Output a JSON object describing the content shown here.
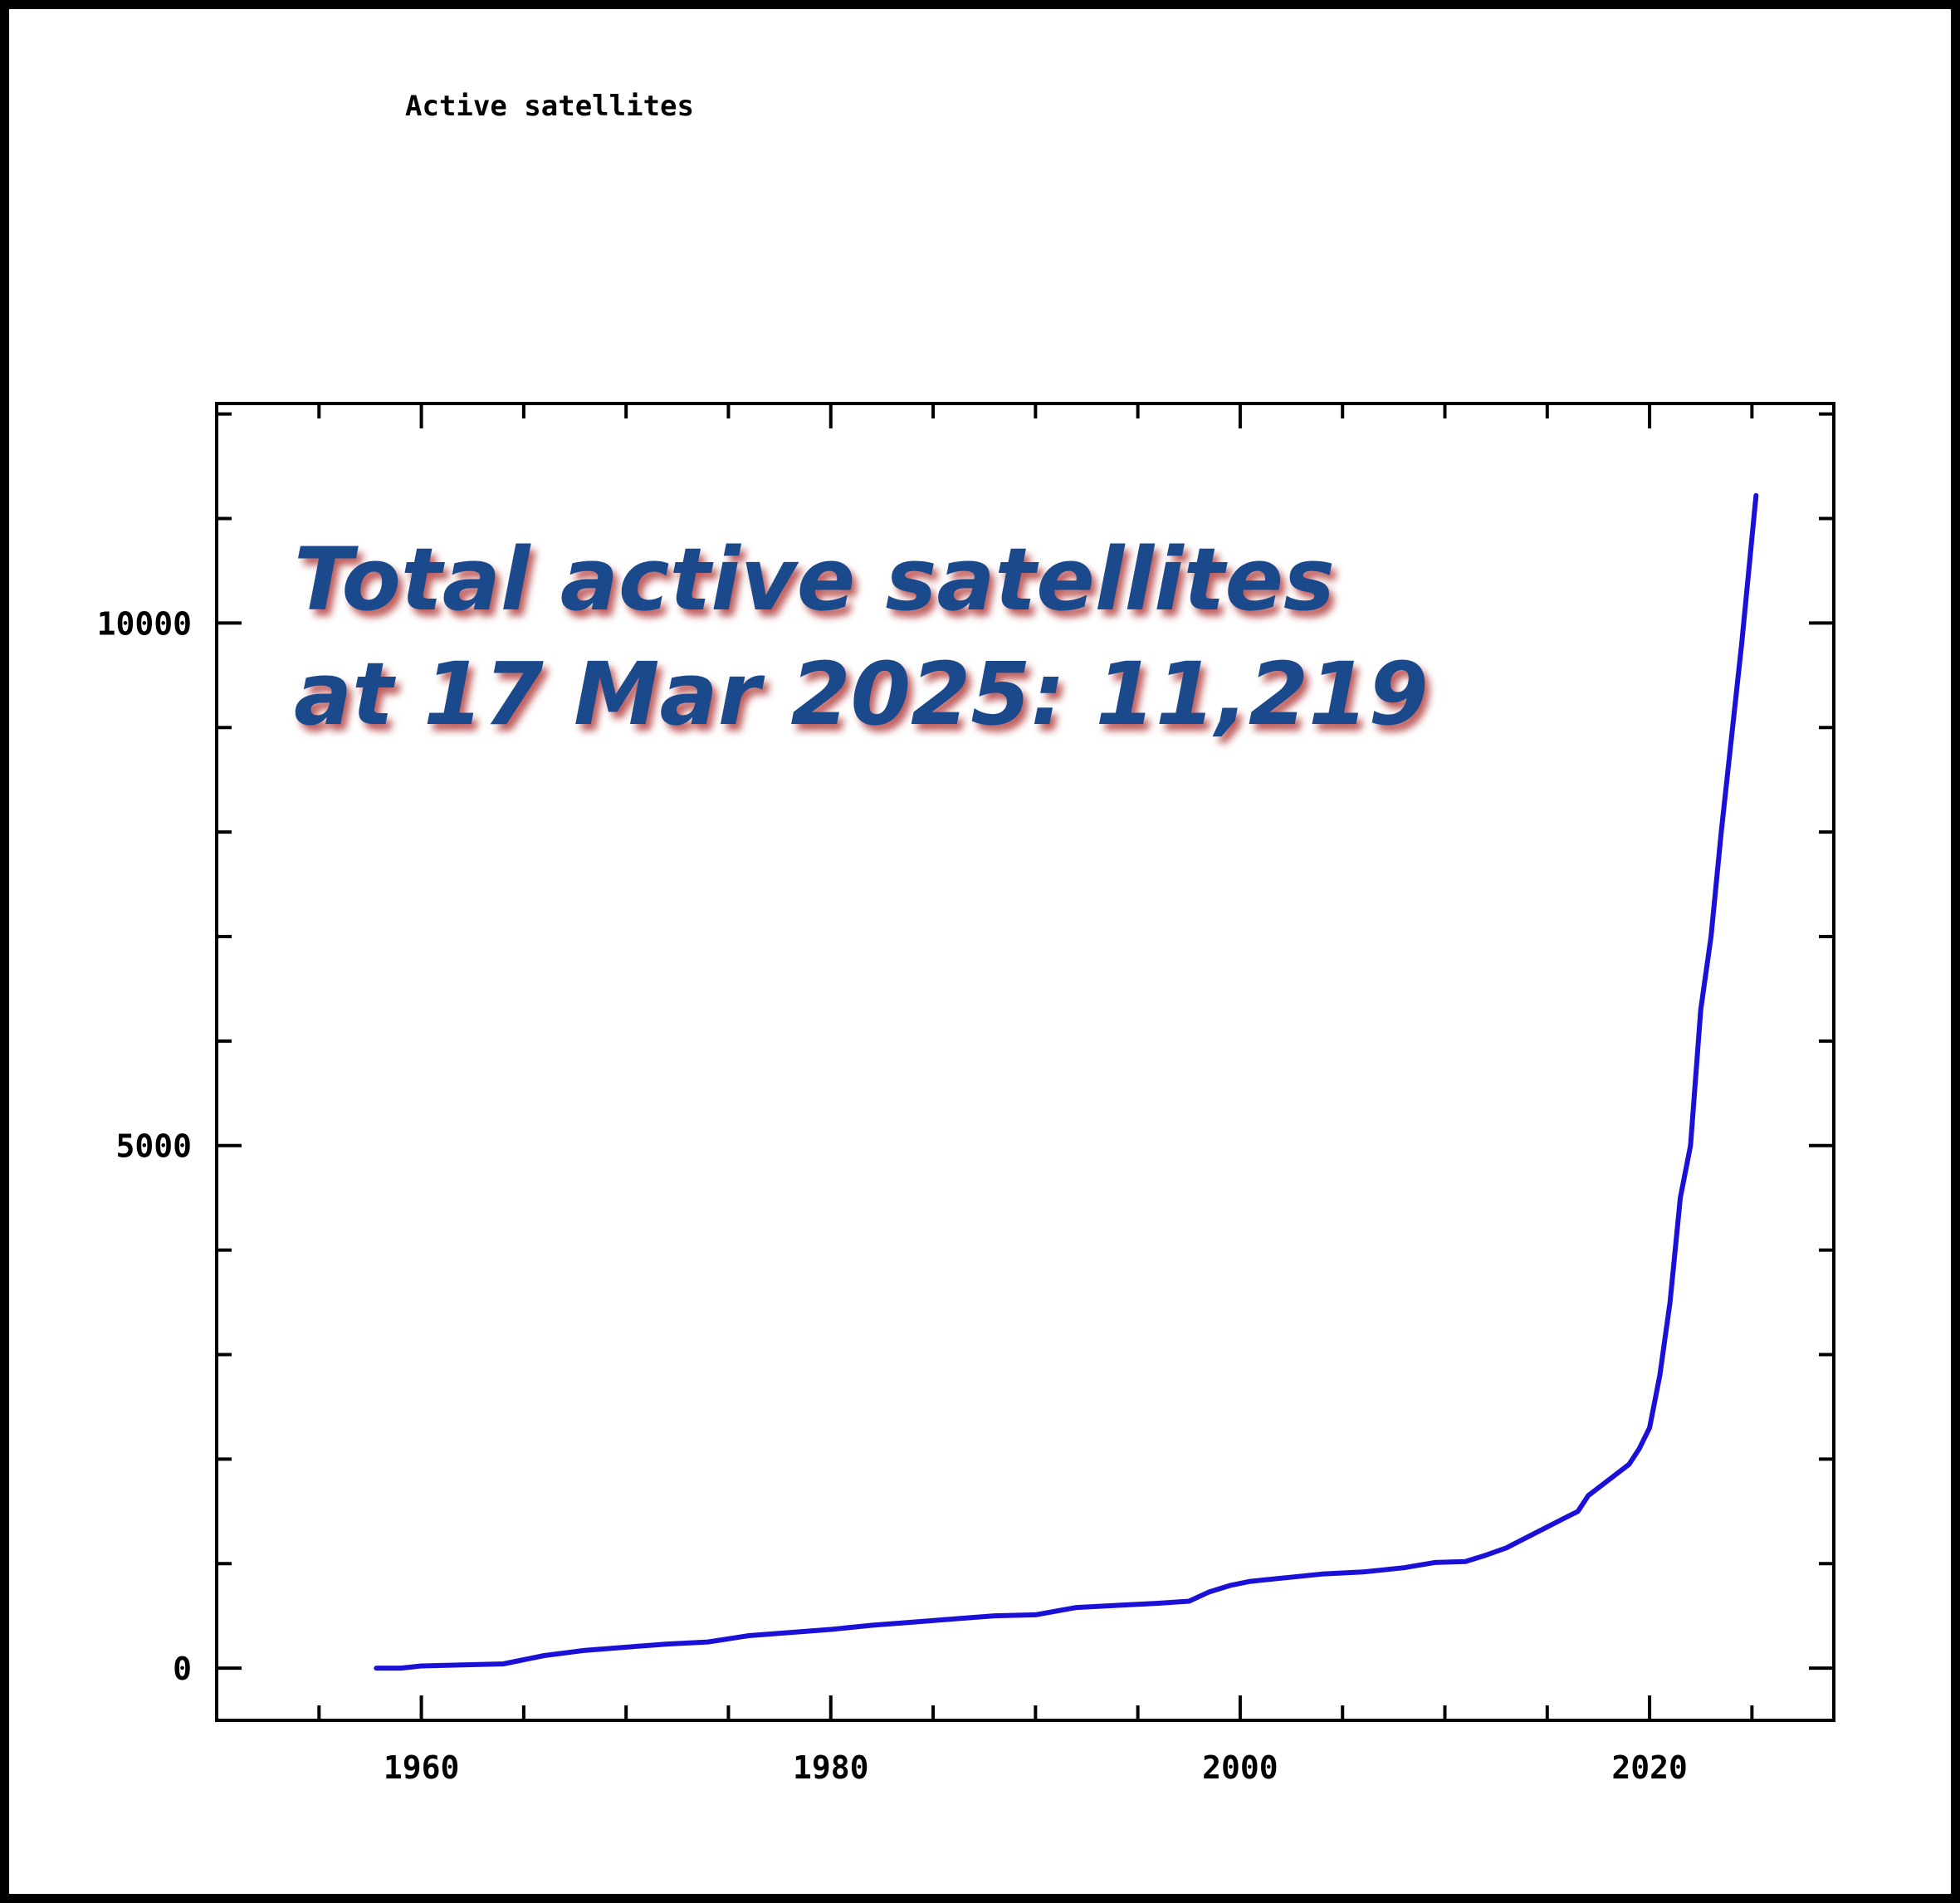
{
  "chart_data": {
    "type": "line",
    "title": "Active satellites",
    "xlabel": "",
    "ylabel": "",
    "xlim": [
      1950,
      2029
    ],
    "ylim": [
      -500,
      12100
    ],
    "x_ticks": [
      1960,
      1980,
      2000,
      2020
    ],
    "y_ticks": [
      0,
      5000,
      10000
    ],
    "grid": false,
    "line_color": "#1a10d8",
    "annotation": {
      "line1": "Total active satellites",
      "line2": "at 17 Mar 2025: 11,219",
      "color": "#1a4a8c"
    },
    "series": [
      {
        "x": [
          1957.8,
          1959,
          1960,
          1962,
          1964,
          1965,
          1966,
          1968,
          1970,
          1972,
          1974,
          1976,
          1978,
          1980,
          1982,
          1984,
          1986,
          1988,
          1990,
          1992,
          1994,
          1996,
          1997.5,
          1998.5,
          1999.5,
          2000.5,
          2002,
          2004,
          2006,
          2008,
          2009.5,
          2011,
          2012,
          2013,
          2014,
          2015,
          2016,
          2016.5,
          2017,
          2018,
          2019,
          2019.5,
          2020,
          2020.5,
          2021,
          2021.5,
          2022,
          2022.5,
          2023,
          2023.5,
          2024,
          2024.5,
          2025.2
        ],
        "y": [
          0,
          0,
          20,
          30,
          40,
          80,
          120,
          170,
          200,
          230,
          250,
          310,
          340,
          370,
          410,
          440,
          470,
          500,
          510,
          580,
          600,
          620,
          640,
          730,
          790,
          830,
          860,
          900,
          920,
          960,
          1010,
          1020,
          1080,
          1150,
          1250,
          1350,
          1450,
          1500,
          1650,
          1800,
          1950,
          2100,
          2300,
          2800,
          3500,
          4500,
          5000,
          6300,
          7000,
          8000,
          8900,
          9800,
          11219
        ]
      }
    ]
  }
}
